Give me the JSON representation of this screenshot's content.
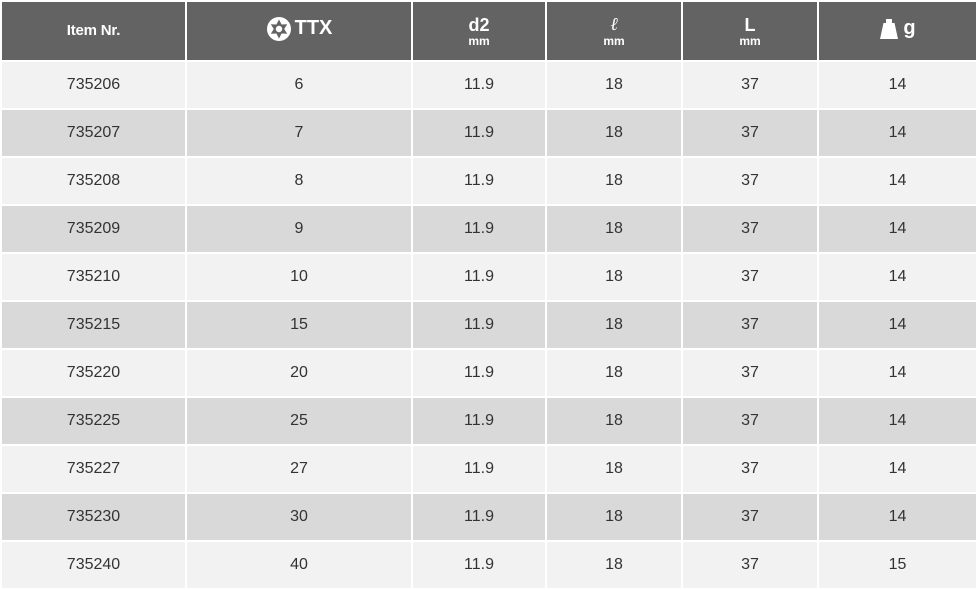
{
  "table": {
    "headers": {
      "item": "Item Nr.",
      "ttx": "TTX",
      "d2": "d2",
      "d2_unit": "mm",
      "l": "ℓ",
      "l_unit": "mm",
      "L": "L",
      "L_unit": "mm",
      "weight": "g"
    },
    "rows": [
      {
        "item": "735206",
        "ttx": "6",
        "d2": "11.9",
        "l": "18",
        "L": "37",
        "g": "14"
      },
      {
        "item": "735207",
        "ttx": "7",
        "d2": "11.9",
        "l": "18",
        "L": "37",
        "g": "14"
      },
      {
        "item": "735208",
        "ttx": "8",
        "d2": "11.9",
        "l": "18",
        "L": "37",
        "g": "14"
      },
      {
        "item": "735209",
        "ttx": "9",
        "d2": "11.9",
        "l": "18",
        "L": "37",
        "g": "14"
      },
      {
        "item": "735210",
        "ttx": "10",
        "d2": "11.9",
        "l": "18",
        "L": "37",
        "g": "14"
      },
      {
        "item": "735215",
        "ttx": "15",
        "d2": "11.9",
        "l": "18",
        "L": "37",
        "g": "14"
      },
      {
        "item": "735220",
        "ttx": "20",
        "d2": "11.9",
        "l": "18",
        "L": "37",
        "g": "14"
      },
      {
        "item": "735225",
        "ttx": "25",
        "d2": "11.9",
        "l": "18",
        "L": "37",
        "g": "14"
      },
      {
        "item": "735227",
        "ttx": "27",
        "d2": "11.9",
        "l": "18",
        "L": "37",
        "g": "14"
      },
      {
        "item": "735230",
        "ttx": "30",
        "d2": "11.9",
        "l": "18",
        "L": "37",
        "g": "14"
      },
      {
        "item": "735240",
        "ttx": "40",
        "d2": "11.9",
        "l": "18",
        "L": "37",
        "g": "15"
      }
    ]
  },
  "icons": {
    "ttx": "torx-star-icon",
    "weight": "weight-icon"
  },
  "colors": {
    "header_bg": "#636363",
    "row_light": "#f2f2f2",
    "row_dark": "#d9d9d9"
  }
}
